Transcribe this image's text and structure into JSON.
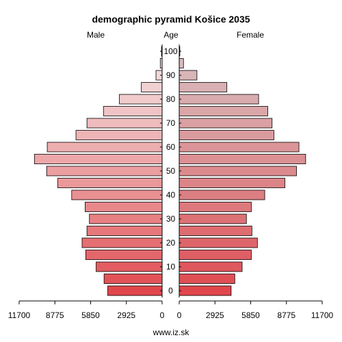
{
  "chart_data": {
    "type": "bar",
    "orientation": "population-pyramid",
    "title": "demographic pyramid Košice 2035",
    "left_label": "Male",
    "center_label": "Age",
    "right_label": "Female",
    "footer": "www.iz.sk",
    "age_groups": [
      0,
      5,
      10,
      15,
      20,
      25,
      30,
      35,
      40,
      45,
      50,
      55,
      60,
      65,
      70,
      75,
      80,
      85,
      90,
      95,
      100
    ],
    "age_tick_labels": [
      "0",
      "10",
      "20",
      "30",
      "40",
      "50",
      "60",
      "70",
      "80",
      "90",
      "100"
    ],
    "x_tick_labels": [
      "11700",
      "8775",
      "5850",
      "2925",
      "0",
      "0",
      "2925",
      "5850",
      "8775",
      "11700"
    ],
    "xlim": [
      0,
      11700
    ],
    "series": [
      {
        "name": "Male",
        "values": [
          4450,
          4750,
          5400,
          6250,
          6550,
          6150,
          5950,
          6300,
          7400,
          8550,
          9450,
          10450,
          9400,
          7050,
          6150,
          4800,
          3500,
          1700,
          500,
          150,
          50
        ]
      },
      {
        "name": "Female",
        "values": [
          4250,
          4550,
          5150,
          5900,
          6400,
          5950,
          5500,
          5900,
          7000,
          8650,
          9600,
          10350,
          9800,
          7750,
          7600,
          7250,
          6500,
          3900,
          1450,
          350,
          50
        ]
      }
    ],
    "colors": {
      "male_base": "#e0474c",
      "female_base": "#e0474c",
      "male_top": "#f4e6e6",
      "female_top": "#d8c0c2"
    }
  }
}
